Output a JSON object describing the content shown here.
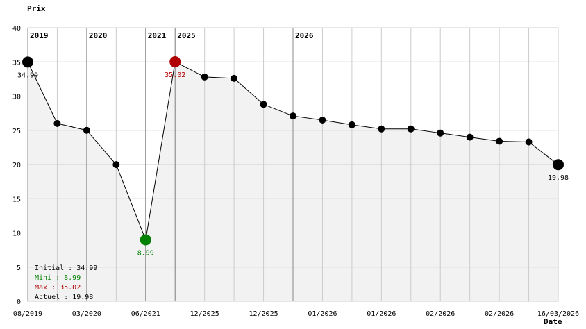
{
  "chart_data": {
    "type": "line",
    "ylabel": "Prix",
    "xlabel": "Date",
    "ylim": [
      0,
      40
    ],
    "y_ticks": [
      0,
      5,
      10,
      15,
      20,
      25,
      30,
      35,
      40
    ],
    "x_tick_labels": [
      "08/2019",
      "03/2020",
      "06/2021",
      "12/2025",
      "12/2025",
      "01/2026",
      "01/2026",
      "02/2026",
      "02/2026",
      "16/03/2026"
    ],
    "year_markers": [
      {
        "label": "2019",
        "index": 0
      },
      {
        "label": "2020",
        "index": 2
      },
      {
        "label": "2021",
        "index": 4
      },
      {
        "label": "2025",
        "index": 5
      },
      {
        "label": "2026",
        "index": 9
      }
    ],
    "series": [
      {
        "values": [
          34.99,
          26.0,
          25.0,
          19.99,
          8.99,
          35.02,
          32.8,
          32.6,
          28.8,
          27.1,
          26.5,
          25.8,
          25.2,
          25.2,
          24.6,
          24.0,
          23.4,
          23.3,
          19.98
        ]
      }
    ],
    "highlights": {
      "initial": {
        "index": 0,
        "label": "34.99",
        "color": "#000000"
      },
      "min": {
        "index": 4,
        "label": "8.99",
        "color": "#008000"
      },
      "max": {
        "index": 5,
        "label": "35.02",
        "color": "#b00000"
      },
      "current": {
        "index": 18,
        "label": "19.98",
        "color": "#000000"
      }
    },
    "legend": [
      {
        "text": "Initial : 34.99",
        "color": "#000000"
      },
      {
        "text": "Mini : 8.99",
        "color": "#008000"
      },
      {
        "text": "Max : 35.02",
        "color": "#b00000"
      },
      {
        "text": "Actuel : 19.98",
        "color": "#000000"
      }
    ],
    "colors": {
      "line": "#000000",
      "area": "#f2f2f2",
      "grid": "#cccccc",
      "marker_line": "#888888"
    }
  }
}
